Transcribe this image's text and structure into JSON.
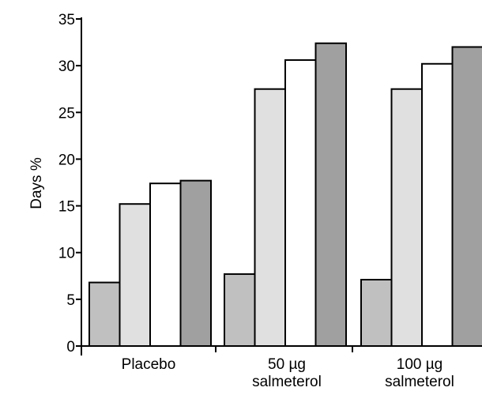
{
  "chart_data": {
    "type": "bar",
    "ylabel": "Days %",
    "xlabel": "",
    "ylim": [
      0,
      35
    ],
    "yticks": [
      0,
      5,
      10,
      15,
      20,
      25,
      30,
      35
    ],
    "grid": false,
    "legend": "none",
    "categories": [
      [
        "Placebo"
      ],
      [
        "50 µg",
        "salmeterol"
      ],
      [
        "100 µg",
        "salmeterol"
      ]
    ],
    "series": [
      {
        "values": [
          6.8,
          7.7,
          7.1
        ],
        "color": "#c0c0c0"
      },
      {
        "values": [
          15.2,
          27.5,
          27.5
        ],
        "color": "#e0e0e0"
      },
      {
        "values": [
          17.4,
          30.6,
          30.2
        ],
        "color": "#ffffff"
      },
      {
        "values": [
          17.7,
          32.4,
          32.0
        ],
        "color": "#a0a0a0"
      }
    ]
  }
}
